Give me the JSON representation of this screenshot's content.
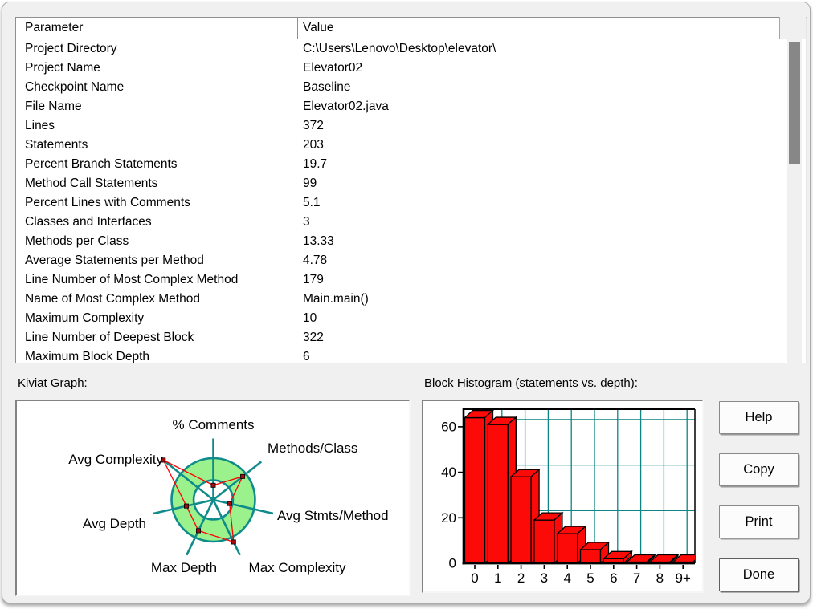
{
  "table": {
    "columns": [
      "Parameter",
      "Value"
    ],
    "rows": [
      [
        "Project Directory",
        "C:\\Users\\Lenovo\\Desktop\\elevator\\"
      ],
      [
        "Project Name",
        "Elevator02"
      ],
      [
        "Checkpoint Name",
        "Baseline"
      ],
      [
        "File Name",
        "Elevator02.java"
      ],
      [
        "Lines",
        "372"
      ],
      [
        "Statements",
        "203"
      ],
      [
        "Percent Branch Statements",
        "19.7"
      ],
      [
        "Method Call Statements",
        "99"
      ],
      [
        "Percent Lines with Comments",
        "5.1"
      ],
      [
        "Classes and Interfaces",
        "3"
      ],
      [
        "Methods per Class",
        "13.33"
      ],
      [
        "Average Statements per Method",
        "4.78"
      ],
      [
        "Line Number of Most Complex Method",
        "179"
      ],
      [
        "Name of Most Complex Method",
        "Main.main()"
      ],
      [
        "Maximum Complexity",
        "10"
      ],
      [
        "Line Number of Deepest Block",
        "322"
      ],
      [
        "Maximum Block Depth",
        "6"
      ]
    ]
  },
  "kiviat": {
    "section_label": "Kiviat Graph:"
  },
  "histogram": {
    "section_label": "Block Histogram (statements vs. depth):"
  },
  "buttons": {
    "help": "Help",
    "copy": "Copy",
    "print": "Print",
    "done": "Done"
  },
  "colors": {
    "dialog_bg": "#f0f0f0",
    "teal": "#108b8b",
    "ring_green": "#9bf18c",
    "series_red": "#ff0000",
    "marker_red": "#a50d0d",
    "grid_teal": "#0e8484",
    "bar_red": "#fb0a08",
    "scroll_thumb": "#878787"
  },
  "chart_data": [
    {
      "type": "radar",
      "title": "Kiviat Graph:",
      "axes": [
        "% Comments",
        "Methods/Class",
        "Avg Stmts/Method",
        "Max Complexity",
        "Max Depth",
        "Avg Depth",
        "Avg Complexity"
      ],
      "values_fraction_of_ring_outer": [
        0.35,
        0.9,
        0.4,
        1.12,
        0.82,
        0.66,
        1.53
      ],
      "ring_inner_fraction": 0.47,
      "ring_outer_fraction": 1.0,
      "spoke_fraction": 1.47,
      "legend_note": "red polygon = file metrics, green annulus = acceptable range",
      "grid": false
    },
    {
      "type": "bar",
      "title": "Block Histogram (statements vs. depth):",
      "categories": [
        "0",
        "1",
        "2",
        "3",
        "4",
        "5",
        "6",
        "7",
        "8",
        "9+"
      ],
      "values": [
        64,
        61,
        38,
        19,
        13,
        6,
        2,
        0,
        0,
        0
      ],
      "xlabel": "",
      "ylabel": "",
      "ylim": [
        0,
        68
      ],
      "yticks": [
        0,
        20,
        40,
        60
      ],
      "grid": true,
      "legend_position": "none",
      "style": "3d-red-bars-teal-grid"
    }
  ]
}
